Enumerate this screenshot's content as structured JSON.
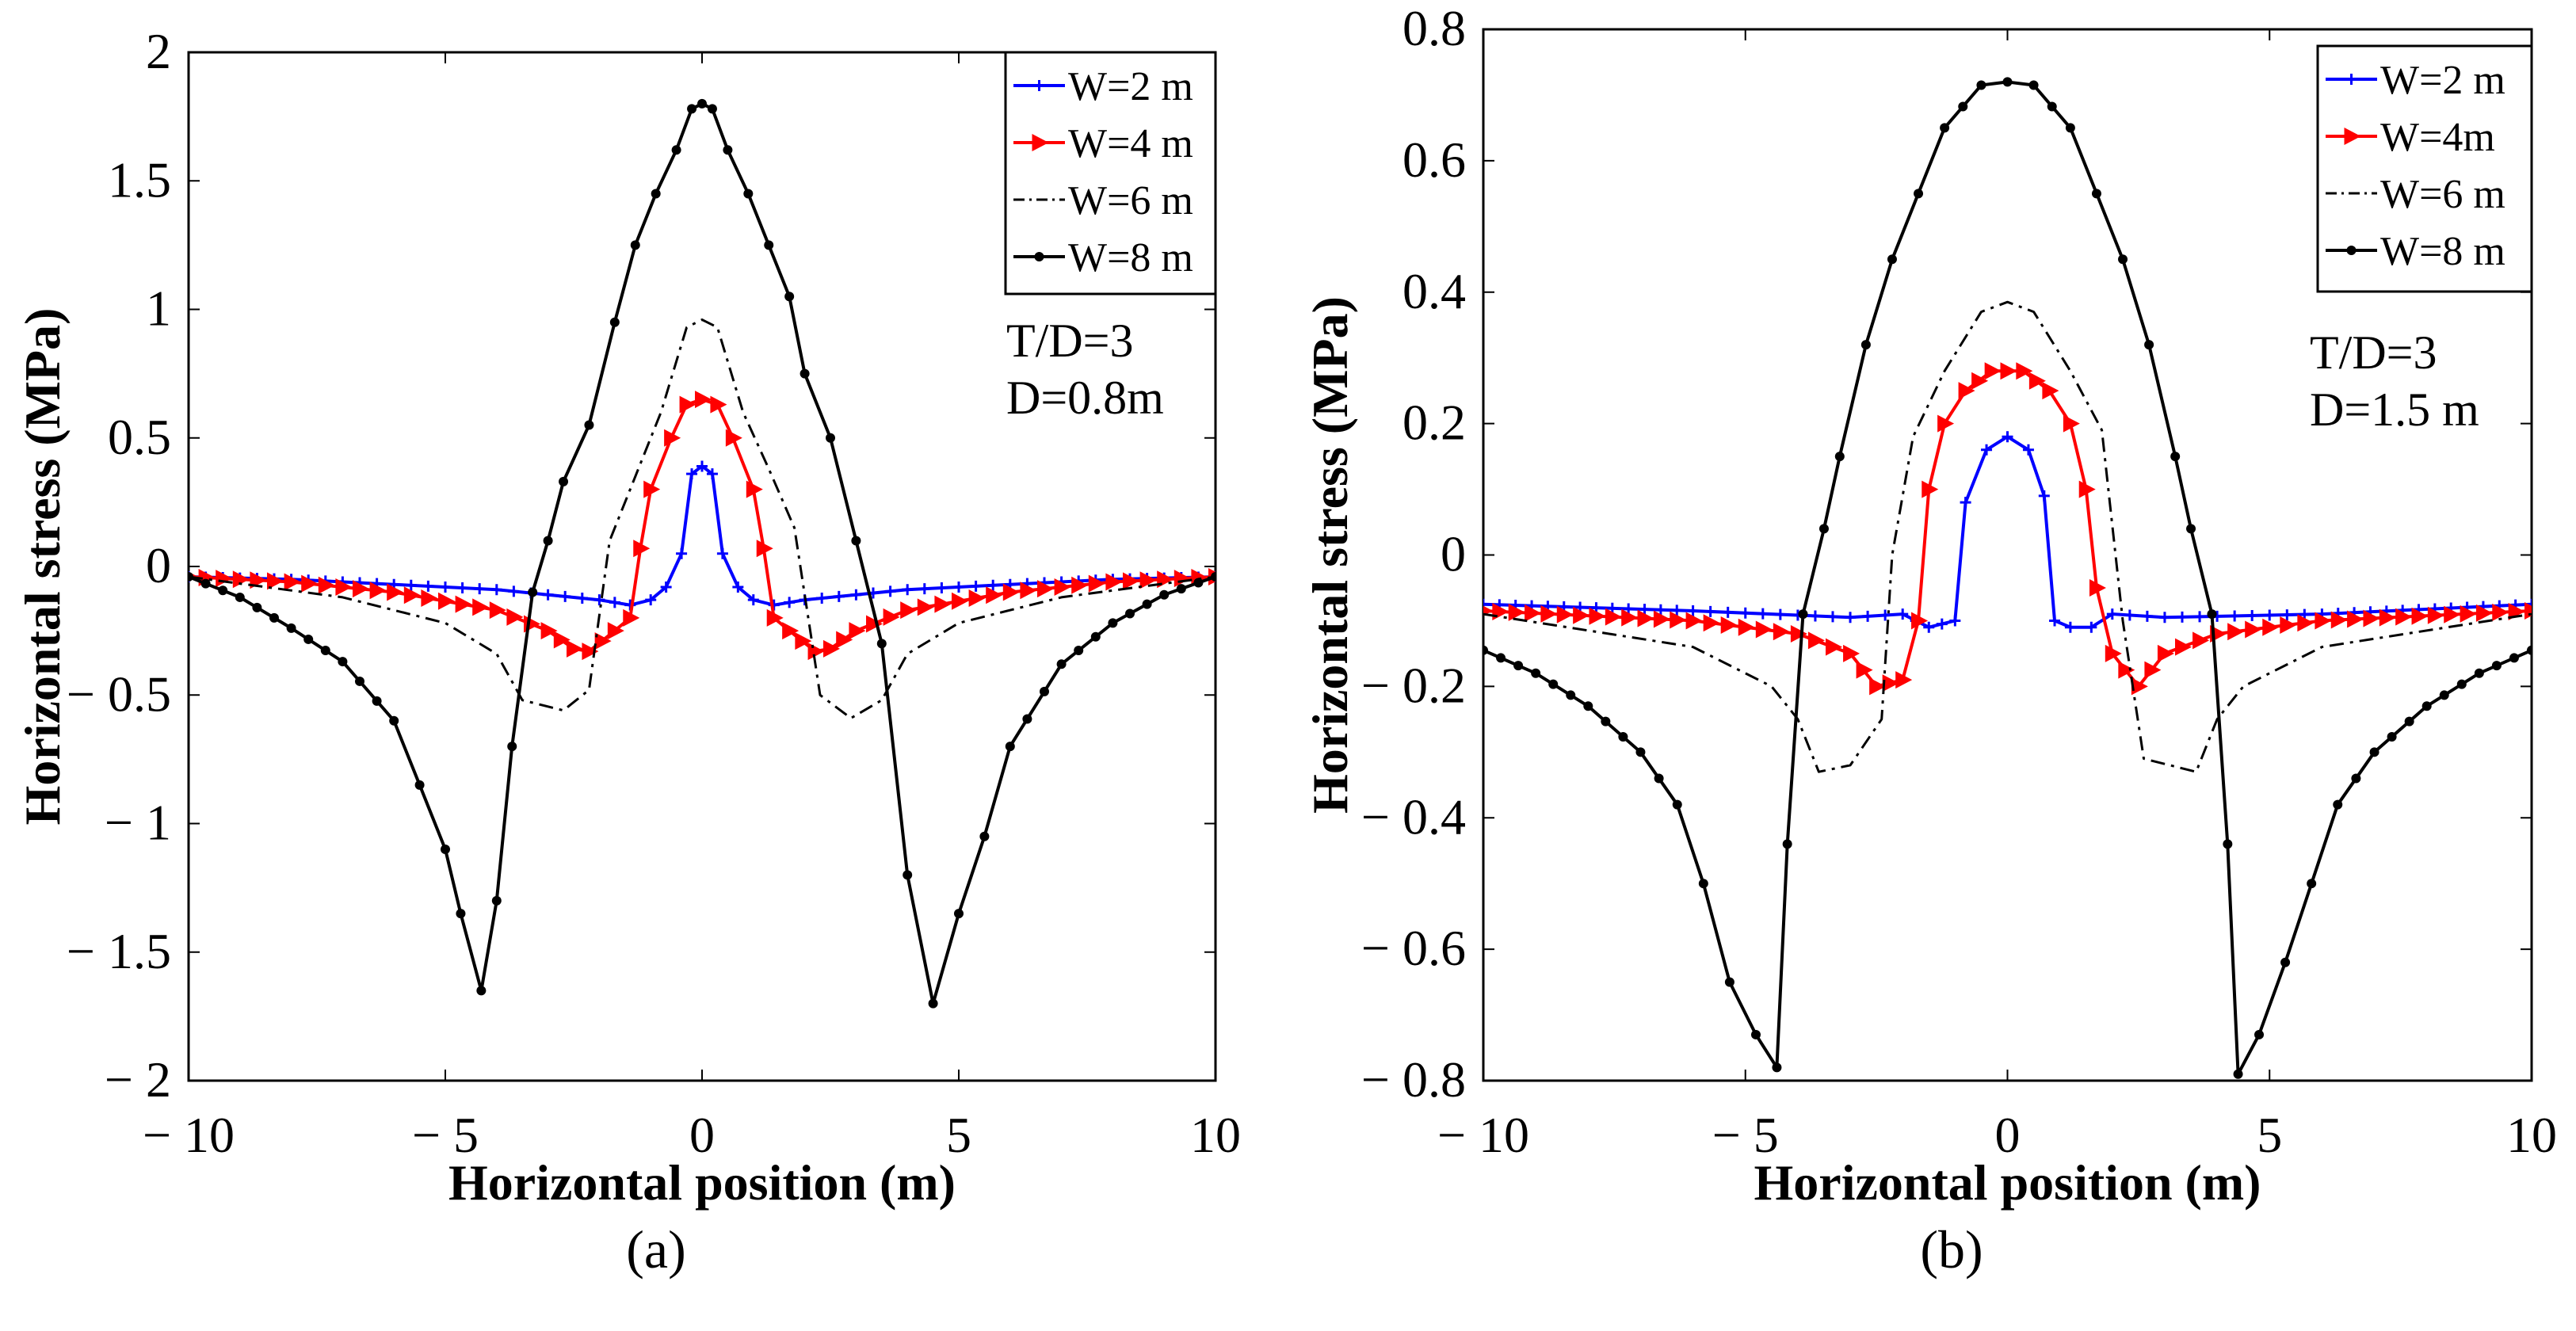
{
  "chart_data": [
    {
      "type": "line",
      "panel_label": "(a)",
      "xlabel": "Horizontal position (m)",
      "ylabel": "Horizontal stress (MPa)",
      "xlim": [
        -10,
        10
      ],
      "ylim": [
        -2,
        2
      ],
      "xticks": [
        -10,
        -5,
        0,
        5,
        10
      ],
      "xtick_labels": [
        "− 10",
        "− 5",
        "0",
        "5",
        "10"
      ],
      "yticks": [
        2,
        1.5,
        1,
        0.5,
        0,
        -0.5,
        -1,
        -1.5,
        -2
      ],
      "ytick_labels": [
        "2",
        "1.5",
        "1",
        "0.5",
        "0",
        "− 0.5",
        "− 1",
        "− 1.5",
        "− 2"
      ],
      "annotations": [
        "T/D=3",
        "D=0.8m"
      ],
      "legend_position": "top-right",
      "series": [
        {
          "name": "W=2 m",
          "color": "#0000ff",
          "marker": "plus",
          "dash": "solid",
          "points": [
            [
              -10,
              -0.04
            ],
            [
              -8,
              -0.05
            ],
            [
              -6,
              -0.07
            ],
            [
              -4,
              -0.09
            ],
            [
              -3,
              -0.11
            ],
            [
              -2,
              -0.13
            ],
            [
              -1.4,
              -0.15
            ],
            [
              -1,
              -0.13
            ],
            [
              -0.7,
              -0.08
            ],
            [
              -0.4,
              0.05
            ],
            [
              -0.2,
              0.36
            ],
            [
              0,
              0.39
            ],
            [
              0.2,
              0.36
            ],
            [
              0.4,
              0.05
            ],
            [
              0.7,
              -0.08
            ],
            [
              1,
              -0.13
            ],
            [
              1.4,
              -0.15
            ],
            [
              2,
              -0.13
            ],
            [
              3,
              -0.11
            ],
            [
              4,
              -0.09
            ],
            [
              6,
              -0.07
            ],
            [
              8,
              -0.05
            ],
            [
              10,
              -0.04
            ]
          ]
        },
        {
          "name": "W=4 m",
          "color": "#ff0000",
          "marker": "triangle-right",
          "dash": "solid",
          "points": [
            [
              -10,
              -0.04
            ],
            [
              -8,
              -0.06
            ],
            [
              -6,
              -0.1
            ],
            [
              -4,
              -0.17
            ],
            [
              -3,
              -0.25
            ],
            [
              -2.5,
              -0.32
            ],
            [
              -2.2,
              -0.33
            ],
            [
              -1.7,
              -0.25
            ],
            [
              -1.4,
              -0.2
            ],
            [
              -1.2,
              0.07
            ],
            [
              -1,
              0.3
            ],
            [
              -0.6,
              0.5
            ],
            [
              -0.3,
              0.63
            ],
            [
              0,
              0.65
            ],
            [
              0.3,
              0.63
            ],
            [
              0.6,
              0.5
            ],
            [
              1,
              0.3
            ],
            [
              1.2,
              0.07
            ],
            [
              1.4,
              -0.2
            ],
            [
              1.7,
              -0.25
            ],
            [
              2.2,
              -0.33
            ],
            [
              2.5,
              -0.32
            ],
            [
              3,
              -0.25
            ],
            [
              4,
              -0.17
            ],
            [
              6,
              -0.1
            ],
            [
              8,
              -0.06
            ],
            [
              10,
              -0.04
            ]
          ]
        },
        {
          "name": "W=6 m",
          "color": "#000000",
          "marker": "none",
          "dash": "dashdot",
          "points": [
            [
              -10,
              -0.04
            ],
            [
              -7,
              -0.12
            ],
            [
              -5,
              -0.22
            ],
            [
              -4,
              -0.34
            ],
            [
              -3.5,
              -0.52
            ],
            [
              -2.7,
              -0.56
            ],
            [
              -2.2,
              -0.48
            ],
            [
              -1.8,
              0.1
            ],
            [
              -1.3,
              0.35
            ],
            [
              -0.8,
              0.6
            ],
            [
              -0.3,
              0.93
            ],
            [
              0,
              0.96
            ],
            [
              0.3,
              0.93
            ],
            [
              0.8,
              0.6
            ],
            [
              1.3,
              0.38
            ],
            [
              1.8,
              0.15
            ],
            [
              2.3,
              -0.5
            ],
            [
              2.9,
              -0.59
            ],
            [
              3.5,
              -0.52
            ],
            [
              4,
              -0.34
            ],
            [
              5,
              -0.22
            ],
            [
              7,
              -0.12
            ],
            [
              10,
              -0.04
            ]
          ]
        },
        {
          "name": "W=8 m",
          "color": "#000000",
          "marker": "dot",
          "dash": "solid",
          "points": [
            [
              -10,
              -0.04
            ],
            [
              -9,
              -0.12
            ],
            [
              -8,
              -0.24
            ],
            [
              -7,
              -0.37
            ],
            [
              -6,
              -0.6
            ],
            [
              -5.5,
              -0.85
            ],
            [
              -5,
              -1.1
            ],
            [
              -4.7,
              -1.35
            ],
            [
              -4.3,
              -1.65
            ],
            [
              -4,
              -1.3
            ],
            [
              -3.7,
              -0.7
            ],
            [
              -3.3,
              -0.1
            ],
            [
              -3,
              0.1
            ],
            [
              -2.7,
              0.33
            ],
            [
              -2.2,
              0.55
            ],
            [
              -1.7,
              0.95
            ],
            [
              -1.3,
              1.25
            ],
            [
              -0.9,
              1.45
            ],
            [
              -0.5,
              1.62
            ],
            [
              -0.2,
              1.78
            ],
            [
              0,
              1.8
            ],
            [
              0.2,
              1.78
            ],
            [
              0.5,
              1.62
            ],
            [
              0.9,
              1.45
            ],
            [
              1.3,
              1.25
            ],
            [
              1.7,
              1.05
            ],
            [
              2,
              0.75
            ],
            [
              2.5,
              0.5
            ],
            [
              3,
              0.1
            ],
            [
              3.5,
              -0.3
            ],
            [
              4,
              -1.2
            ],
            [
              4.5,
              -1.7
            ],
            [
              5,
              -1.35
            ],
            [
              5.5,
              -1.05
            ],
            [
              6,
              -0.7
            ],
            [
              7,
              -0.38
            ],
            [
              8,
              -0.22
            ],
            [
              9,
              -0.11
            ],
            [
              10,
              -0.04
            ]
          ]
        }
      ]
    },
    {
      "type": "line",
      "panel_label": "(b)",
      "xlabel": "Horizontal position (m)",
      "ylabel": "Horizontal stress (MPa)",
      "xlim": [
        -10,
        10
      ],
      "ylim": [
        -0.8,
        0.8
      ],
      "xticks": [
        -10,
        -5,
        0,
        5,
        10
      ],
      "xtick_labels": [
        "− 10",
        "− 5",
        "0",
        "5",
        "10"
      ],
      "yticks": [
        0.8,
        0.6,
        0.4,
        0.2,
        0,
        -0.2,
        -0.4,
        -0.6,
        -0.8
      ],
      "ytick_labels": [
        "0.8",
        "0.6",
        "0.4",
        "0.2",
        "0",
        "− 0.2",
        "− 0.4",
        "− 0.6",
        "− 0.8"
      ],
      "annotations": [
        "T/D=3",
        "D=1.5 m"
      ],
      "legend_position": "top-right",
      "series": [
        {
          "name": "W=2 m",
          "color": "#0000ff",
          "marker": "plus",
          "dash": "solid",
          "points": [
            [
              -10,
              -0.075
            ],
            [
              -6,
              -0.085
            ],
            [
              -3,
              -0.095
            ],
            [
              -2,
              -0.09
            ],
            [
              -1.5,
              -0.11
            ],
            [
              -1,
              -0.1
            ],
            [
              -0.8,
              0.08
            ],
            [
              -0.4,
              0.16
            ],
            [
              0,
              0.18
            ],
            [
              0.4,
              0.16
            ],
            [
              0.7,
              0.09
            ],
            [
              0.9,
              -0.1
            ],
            [
              1.2,
              -0.11
            ],
            [
              1.6,
              -0.11
            ],
            [
              2,
              -0.09
            ],
            [
              3,
              -0.095
            ],
            [
              6,
              -0.09
            ],
            [
              10,
              -0.075
            ]
          ]
        },
        {
          "name": "W=4m",
          "color": "#ff0000",
          "marker": "triangle-right",
          "dash": "solid",
          "points": [
            [
              -10,
              -0.085
            ],
            [
              -6,
              -0.1
            ],
            [
              -4,
              -0.12
            ],
            [
              -3,
              -0.15
            ],
            [
              -2.5,
              -0.2
            ],
            [
              -2,
              -0.19
            ],
            [
              -1.7,
              -0.1
            ],
            [
              -1.5,
              0.1
            ],
            [
              -1.2,
              0.2
            ],
            [
              -0.8,
              0.25
            ],
            [
              -0.3,
              0.28
            ],
            [
              0,
              0.28
            ],
            [
              0.3,
              0.28
            ],
            [
              0.8,
              0.25
            ],
            [
              1.2,
              0.2
            ],
            [
              1.5,
              0.1
            ],
            [
              1.7,
              -0.05
            ],
            [
              2,
              -0.15
            ],
            [
              2.5,
              -0.2
            ],
            [
              3,
              -0.15
            ],
            [
              4,
              -0.12
            ],
            [
              6,
              -0.1
            ],
            [
              10,
              -0.085
            ]
          ]
        },
        {
          "name": "W=6 m",
          "color": "#000000",
          "marker": "none",
          "dash": "dashdot",
          "points": [
            [
              -10,
              -0.09
            ],
            [
              -6,
              -0.14
            ],
            [
              -4.5,
              -0.2
            ],
            [
              -4,
              -0.25
            ],
            [
              -3.6,
              -0.33
            ],
            [
              -3,
              -0.32
            ],
            [
              -2.4,
              -0.25
            ],
            [
              -2.2,
              0
            ],
            [
              -1.8,
              0.18
            ],
            [
              -1.2,
              0.28
            ],
            [
              -0.5,
              0.37
            ],
            [
              0,
              0.385
            ],
            [
              0.5,
              0.37
            ],
            [
              1.2,
              0.28
            ],
            [
              1.8,
              0.19
            ],
            [
              2.2,
              -0.1
            ],
            [
              2.6,
              -0.31
            ],
            [
              3.6,
              -0.33
            ],
            [
              4,
              -0.25
            ],
            [
              4.5,
              -0.2
            ],
            [
              6,
              -0.14
            ],
            [
              10,
              -0.09
            ]
          ]
        },
        {
          "name": "W=8 m",
          "color": "#000000",
          "marker": "dot",
          "dash": "solid",
          "points": [
            [
              -10,
              -0.145
            ],
            [
              -9,
              -0.18
            ],
            [
              -8,
              -0.23
            ],
            [
              -7,
              -0.3
            ],
            [
              -6.3,
              -0.38
            ],
            [
              -5.8,
              -0.5
            ],
            [
              -5.3,
              -0.65
            ],
            [
              -4.8,
              -0.73
            ],
            [
              -4.4,
              -0.78
            ],
            [
              -4.2,
              -0.44
            ],
            [
              -3.9,
              -0.09
            ],
            [
              -3.5,
              0.04
            ],
            [
              -3.2,
              0.15
            ],
            [
              -2.7,
              0.32
            ],
            [
              -2.2,
              0.45
            ],
            [
              -1.7,
              0.55
            ],
            [
              -1.2,
              0.65
            ],
            [
              -0.5,
              0.715
            ],
            [
              0,
              0.72
            ],
            [
              0.5,
              0.715
            ],
            [
              1.2,
              0.65
            ],
            [
              1.7,
              0.55
            ],
            [
              2.2,
              0.45
            ],
            [
              2.7,
              0.32
            ],
            [
              3.2,
              0.15
            ],
            [
              3.5,
              0.04
            ],
            [
              3.9,
              -0.09
            ],
            [
              4.2,
              -0.44
            ],
            [
              4.4,
              -0.79
            ],
            [
              4.8,
              -0.73
            ],
            [
              5.3,
              -0.62
            ],
            [
              5.8,
              -0.5
            ],
            [
              6.3,
              -0.38
            ],
            [
              7,
              -0.3
            ],
            [
              8,
              -0.23
            ],
            [
              9,
              -0.18
            ],
            [
              10,
              -0.145
            ]
          ]
        }
      ]
    }
  ]
}
